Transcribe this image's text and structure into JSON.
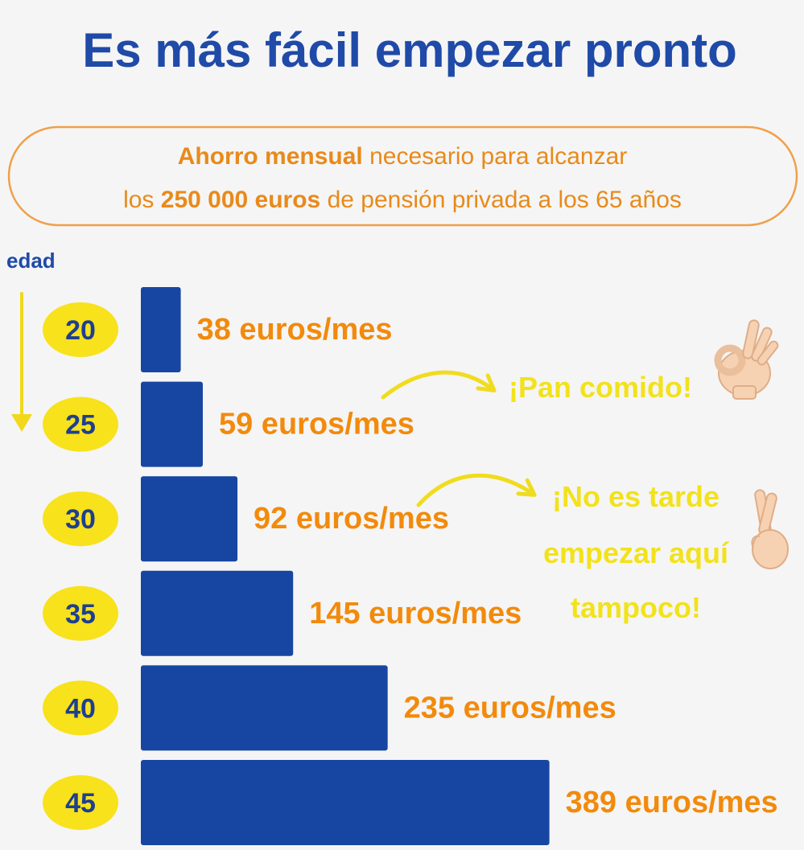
{
  "chart_data": {
    "type": "bar",
    "orientation": "horizontal",
    "title": "Es más fácil empezar pronto",
    "subtitle": {
      "line1_bold": "Ahorro mensual",
      "line1_rest": " necesario para alcanzar",
      "line2_pre": "los ",
      "line2_bold": "250 000 euros",
      "line2_rest": " de pensión privada a los 65 años"
    },
    "ylabel": "edad",
    "categories": [
      "20",
      "25",
      "30",
      "35",
      "40",
      "45"
    ],
    "values": [
      38,
      59,
      92,
      145,
      235,
      389
    ],
    "value_labels": [
      "38 euros/mes",
      "59 euros/mes",
      "92 euros/mes",
      "145 euros/mes",
      "235 euros/mes",
      "389 euros/mes"
    ],
    "annotations": [
      {
        "lines": [
          "¡Pan comido!"
        ],
        "icon": "ok-hand-icon"
      },
      {
        "lines": [
          "¡No es tarde",
          "empezar aquí",
          "tampoco!"
        ],
        "icon": "crossed-fingers-icon"
      }
    ]
  },
  "colors": {
    "title": "#1f4aa8",
    "bar": "#1746a2",
    "value_text": "#f28a0c",
    "subtitle_text": "#e88a1a",
    "badge_fill": "#f7e21c",
    "badge_text": "#1f3f8f",
    "note_text": "#f2e21a",
    "arrow": "#f0dc1e",
    "edad_text": "#1f4aa8",
    "age_arrow": "#f1d81b"
  }
}
